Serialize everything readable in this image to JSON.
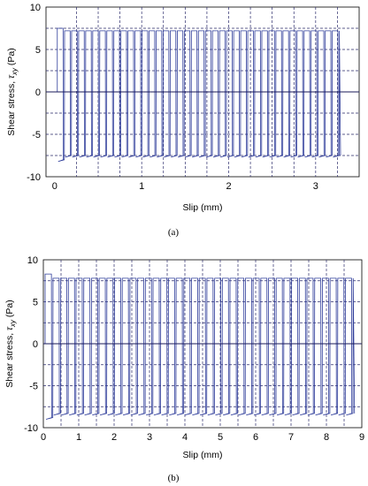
{
  "figure": {
    "panels": [
      {
        "panel_label": "(a)",
        "chart_data": {
          "type": "line",
          "xlabel": "Slip (mm)",
          "ylabel_main": "Shear stress, ",
          "ylabel_symbol": "τ",
          "ylabel_subscript": "xy",
          "ylabel_unit": " (Pa)",
          "xlim": [
            -0.1,
            3.5
          ],
          "ylim": [
            -10,
            10
          ],
          "xticks": [
            0,
            1,
            2,
            3
          ],
          "yticks": [
            -10,
            -5,
            0,
            5,
            10
          ],
          "x_gridlines": [
            0.25,
            0.5,
            0.75,
            1.0,
            1.25,
            1.5,
            1.75,
            2.0,
            2.25,
            2.5,
            2.75,
            3.0,
            3.25
          ],
          "y_gridlines": [
            -7.5,
            -2.5,
            2.5,
            7.5
          ],
          "grid_style": "dashed",
          "series_color": "#2e3c9a",
          "cycles": 40,
          "x_start": 0.03,
          "x_end": 3.27,
          "upper_stress": 7.2,
          "lower_stress": -7.5,
          "upper_stress_start": 7.5,
          "lower_stress_start": -8.0
        }
      },
      {
        "panel_label": "(b)",
        "chart_data": {
          "type": "line",
          "xlabel": "Slip (mm)",
          "ylabel_main": "Shear stress, ",
          "ylabel_symbol": "τ",
          "ylabel_subscript": "xy",
          "ylabel_unit": " (Pa)",
          "xlim": [
            0,
            9
          ],
          "ylim": [
            -10,
            10
          ],
          "xticks": [
            0,
            1,
            2,
            3,
            4,
            5,
            6,
            7,
            8,
            9
          ],
          "yticks": [
            -10,
            -5,
            0,
            5,
            10
          ],
          "x_gridlines": [
            0.5,
            1.0,
            1.5,
            2.0,
            2.5,
            3.0,
            3.5,
            4.0,
            4.5,
            5.0,
            5.5,
            6.0,
            6.5,
            7.0,
            7.5,
            8.0,
            8.5
          ],
          "y_gridlines": [
            -7.5,
            -2.5,
            2.5,
            7.5
          ],
          "grid_style": "dashed",
          "series_color": "#2e3c9a",
          "cycles": 40,
          "x_start": 0.05,
          "x_end": 8.75,
          "upper_stress": 7.8,
          "lower_stress": -8.3,
          "upper_stress_start": 8.3,
          "lower_stress_start": -8.8
        }
      }
    ]
  }
}
